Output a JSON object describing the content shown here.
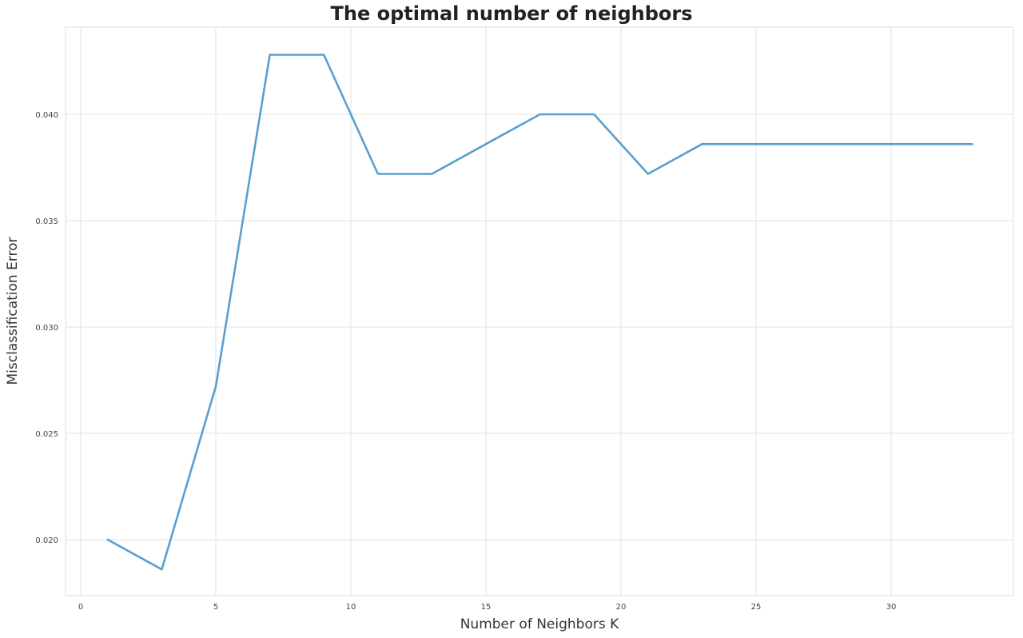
{
  "chart_data": {
    "type": "line",
    "title": "The optimal number of neighbors",
    "xlabel": "Number of Neighbors K",
    "ylabel": "Misclassification Error",
    "x": [
      1,
      3,
      5,
      7,
      9,
      11,
      13,
      15,
      17,
      19,
      21,
      23,
      25,
      27,
      29,
      31,
      33
    ],
    "series": [
      {
        "name": "Misclassification Error",
        "color": "#5a9fcf",
        "values": [
          0.02,
          0.0186,
          0.0272,
          0.0428,
          0.0428,
          0.0372,
          0.0372,
          0.0386,
          0.04,
          0.04,
          0.0372,
          0.0386,
          0.0386,
          0.0386,
          0.0386,
          0.0386,
          0.0386
        ]
      }
    ],
    "xticks": [
      0,
      5,
      10,
      15,
      20,
      25,
      30
    ],
    "yticks": [
      0.02,
      0.025,
      0.03,
      0.035,
      0.04
    ],
    "ytick_labels": [
      "0.020",
      "0.025",
      "0.030",
      "0.035",
      "0.040"
    ],
    "xlim": [
      -0.5,
      34.5
    ],
    "ylim": [
      0.0174,
      0.0443
    ],
    "grid": true,
    "legend": null
  }
}
